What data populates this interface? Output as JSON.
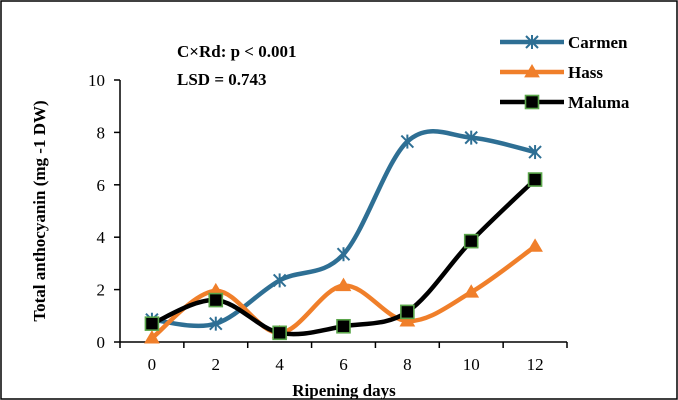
{
  "chart_data": {
    "type": "line",
    "x": [
      0,
      2,
      4,
      6,
      8,
      10,
      12
    ],
    "xlabel": "Ripening days",
    "ylabel": "Total anthocyanin  (mg -1  DW)",
    "xlim": [
      -1,
      13
    ],
    "ylim": [
      0,
      10
    ],
    "xticks": [
      0,
      2,
      4,
      6,
      8,
      10,
      12
    ],
    "yticks": [
      0,
      2,
      4,
      6,
      8,
      10
    ],
    "grid": false,
    "legend_position": "top-right",
    "annotations": [
      "C×Rd: p < 0.001",
      "LSD = 0.743"
    ],
    "series": [
      {
        "name": "Carmen",
        "color": "#2e6f94",
        "marker": "asterisk",
        "values": [
          0.85,
          0.7,
          2.35,
          3.35,
          7.65,
          7.8,
          7.25
        ]
      },
      {
        "name": "Hass",
        "color": "#f07f2a",
        "marker": "triangle",
        "values": [
          0.15,
          1.95,
          0.35,
          2.15,
          0.8,
          1.9,
          3.65
        ]
      },
      {
        "name": "Maluma",
        "color": "#000000",
        "marker": "square-green",
        "values": [
          0.7,
          1.6,
          0.35,
          0.6,
          1.15,
          3.85,
          6.2
        ]
      }
    ]
  }
}
